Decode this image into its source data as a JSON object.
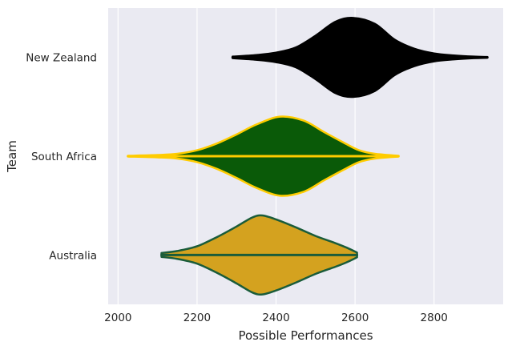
{
  "chart_data": {
    "type": "violin",
    "orientation": "horizontal",
    "xlabel": "Possible Performances",
    "ylabel": "Team",
    "xlim": [
      1975,
      2975
    ],
    "xticks": [
      2000,
      2200,
      2400,
      2600,
      2800
    ],
    "xtick_labels": [
      "2000",
      "2200",
      "2400",
      "2600",
      "2800"
    ],
    "grid": true,
    "background": "#eaeaf2",
    "grid_color": "#ffffff",
    "categories": [
      "New Zealand",
      "South Africa",
      "Australia"
    ],
    "series": [
      {
        "name": "New Zealand",
        "fill": "#000000",
        "edge": "#000000",
        "min": 2290,
        "max": 2935,
        "median": 2595,
        "density": [
          [
            2290,
            0.02
          ],
          [
            2350,
            0.06
          ],
          [
            2400,
            0.12
          ],
          [
            2450,
            0.25
          ],
          [
            2500,
            0.55
          ],
          [
            2550,
            0.9
          ],
          [
            2595,
            1.0
          ],
          [
            2650,
            0.85
          ],
          [
            2700,
            0.45
          ],
          [
            2750,
            0.22
          ],
          [
            2800,
            0.1
          ],
          [
            2850,
            0.05
          ],
          [
            2900,
            0.02
          ],
          [
            2935,
            0.01
          ]
        ]
      },
      {
        "name": "South Africa",
        "fill": "#0a5a08",
        "edge": "#ffcc00",
        "min": 2025,
        "max": 2710,
        "median": 2410,
        "density": [
          [
            2025,
            0.01
          ],
          [
            2100,
            0.03
          ],
          [
            2150,
            0.06
          ],
          [
            2200,
            0.15
          ],
          [
            2250,
            0.32
          ],
          [
            2300,
            0.55
          ],
          [
            2350,
            0.8
          ],
          [
            2410,
            1.0
          ],
          [
            2470,
            0.9
          ],
          [
            2520,
            0.62
          ],
          [
            2570,
            0.35
          ],
          [
            2610,
            0.15
          ],
          [
            2650,
            0.06
          ],
          [
            2710,
            0.01
          ]
        ]
      },
      {
        "name": "Australia",
        "fill": "#d4a21f",
        "edge": "#1a5c3a",
        "min": 2110,
        "max": 2605,
        "median": 2365,
        "density": [
          [
            2110,
            0.05
          ],
          [
            2150,
            0.1
          ],
          [
            2200,
            0.22
          ],
          [
            2250,
            0.45
          ],
          [
            2300,
            0.72
          ],
          [
            2340,
            0.95
          ],
          [
            2365,
            1.0
          ],
          [
            2400,
            0.9
          ],
          [
            2450,
            0.7
          ],
          [
            2500,
            0.48
          ],
          [
            2550,
            0.3
          ],
          [
            2580,
            0.18
          ],
          [
            2605,
            0.06
          ]
        ]
      }
    ]
  }
}
